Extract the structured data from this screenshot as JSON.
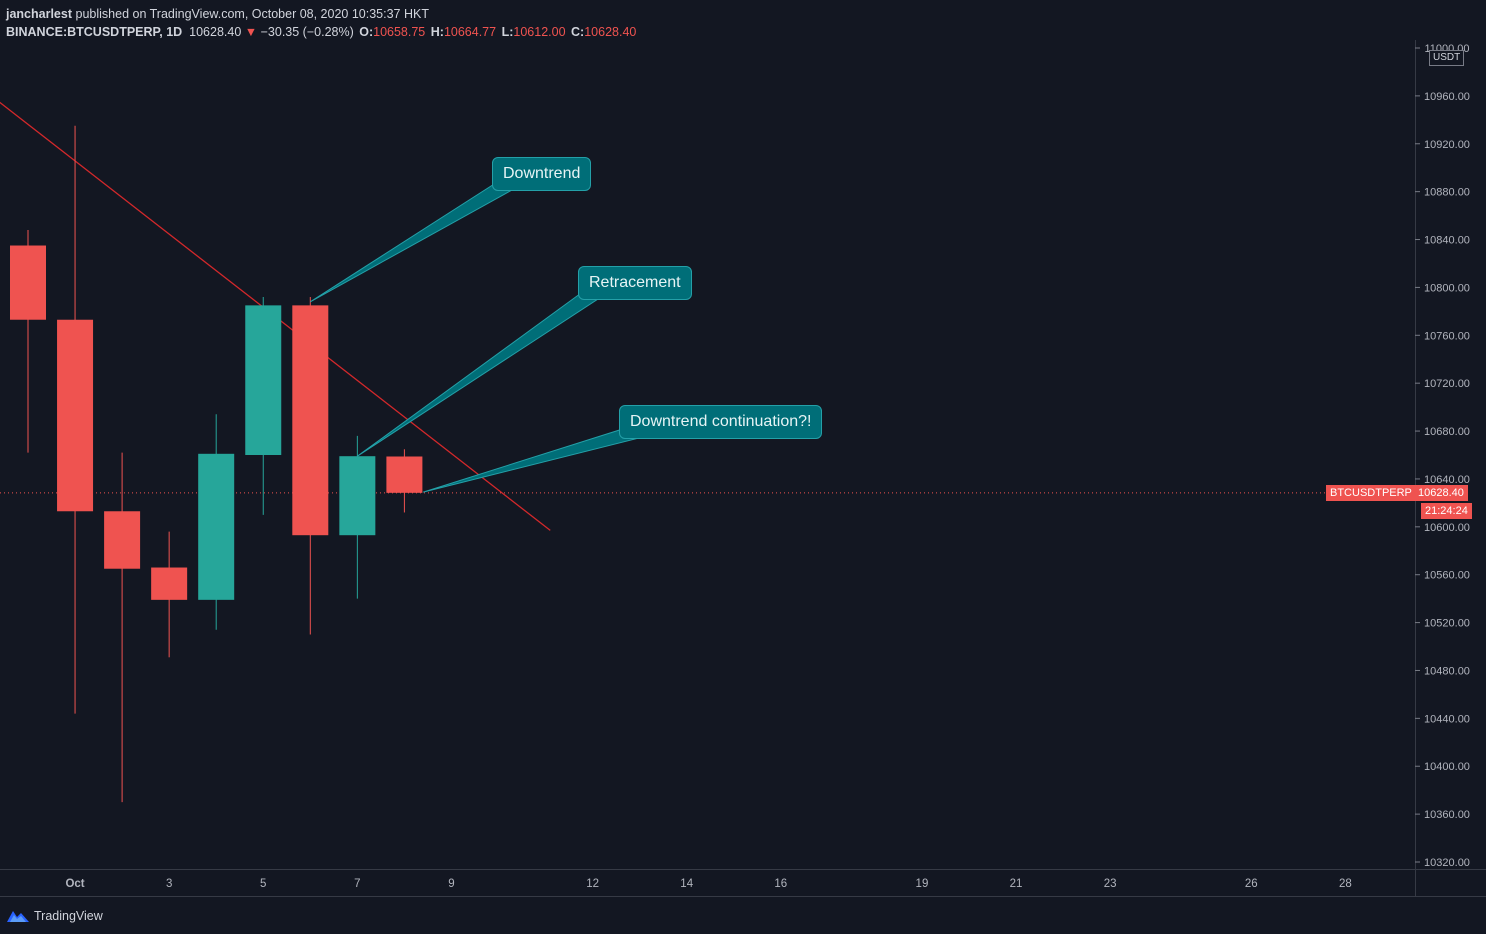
{
  "header": {
    "author": "jancharlest",
    "published_text": "published on TradingView.com, October 08, 2020 10:35:37 HKT",
    "symbol": "BINANCE:BTCUSDTPERP, 1D",
    "last": "10628.40",
    "change_arrow": "▼",
    "change": "−30.35 (−0.28%)",
    "o_label": "O:",
    "o_value": "10658.75",
    "h_label": "H:",
    "h_value": "10664.77",
    "l_label": "L:",
    "l_value": "10612.00",
    "c_label": "C:",
    "c_value": "10628.40"
  },
  "footer": {
    "brand": "TradingView"
  },
  "colors": {
    "up": "#26a69a",
    "down": "#ef5350",
    "background": "#131722",
    "trendline": "#d3282b",
    "callout": "#006e78"
  },
  "icons": [
    "tradingview-logo-icon"
  ],
  "chart_data": {
    "type": "candlestick",
    "symbol": "BTCUSDTPERP",
    "unit": "USDT",
    "ylim": [
      10310,
      11000
    ],
    "y_ticks": [
      10320,
      10360,
      10400,
      10440,
      10480,
      10520,
      10560,
      10600,
      10640,
      10680,
      10720,
      10760,
      10800,
      10840,
      10880,
      10920,
      10960,
      11000
    ],
    "x_ticks": [
      {
        "label": "Oct",
        "day": 1,
        "bold": true
      },
      {
        "label": "3",
        "day": 3
      },
      {
        "label": "5",
        "day": 5
      },
      {
        "label": "7",
        "day": 7
      },
      {
        "label": "9",
        "day": 9
      },
      {
        "label": "12",
        "day": 12
      },
      {
        "label": "14",
        "day": 14
      },
      {
        "label": "16",
        "day": 16
      },
      {
        "label": "19",
        "day": 19
      },
      {
        "label": "21",
        "day": 21
      },
      {
        "label": "23",
        "day": 23
      },
      {
        "label": "26",
        "day": 26
      },
      {
        "label": "28",
        "day": 28
      }
    ],
    "candles": [
      {
        "date": "2020-09-30",
        "day": 0,
        "open": 10835,
        "high": 10848,
        "low": 10662,
        "close": 10773
      },
      {
        "date": "2020-10-01",
        "day": 1,
        "open": 10773,
        "high": 10935,
        "low": 10444,
        "close": 10613
      },
      {
        "date": "2020-10-02",
        "day": 2,
        "open": 10613,
        "high": 10662,
        "low": 10370,
        "close": 10565
      },
      {
        "date": "2020-10-03",
        "day": 3,
        "open": 10566,
        "high": 10596,
        "low": 10491,
        "close": 10539
      },
      {
        "date": "2020-10-04",
        "day": 4,
        "open": 10539,
        "high": 10694,
        "low": 10514,
        "close": 10661
      },
      {
        "date": "2020-10-05",
        "day": 5,
        "open": 10660,
        "high": 10792,
        "low": 10610,
        "close": 10785
      },
      {
        "date": "2020-10-06",
        "day": 6,
        "open": 10785,
        "high": 10792,
        "low": 10510,
        "close": 10593
      },
      {
        "date": "2020-10-07",
        "day": 7,
        "open": 10593,
        "high": 10676,
        "low": 10540,
        "close": 10659
      },
      {
        "date": "2020-10-08",
        "day": 8,
        "open": 10658.75,
        "high": 10664.77,
        "low": 10612.0,
        "close": 10628.4
      }
    ],
    "last_price": {
      "label": "BTCUSDTPERP",
      "value": "10628.40",
      "countdown": "21:24:24"
    },
    "trendline": {
      "from": {
        "day": -1.4,
        "price": 10979
      },
      "to": {
        "day": 11.1,
        "price": 10597
      }
    },
    "annotations": [
      {
        "text": "Downtrend",
        "target_day": 6,
        "target_price": 10788
      },
      {
        "text": "Retracement",
        "target_day": 7,
        "target_price": 10659
      },
      {
        "text": "Downtrend continuation?!",
        "target_day": 8.4,
        "target_price": 10629
      }
    ]
  }
}
